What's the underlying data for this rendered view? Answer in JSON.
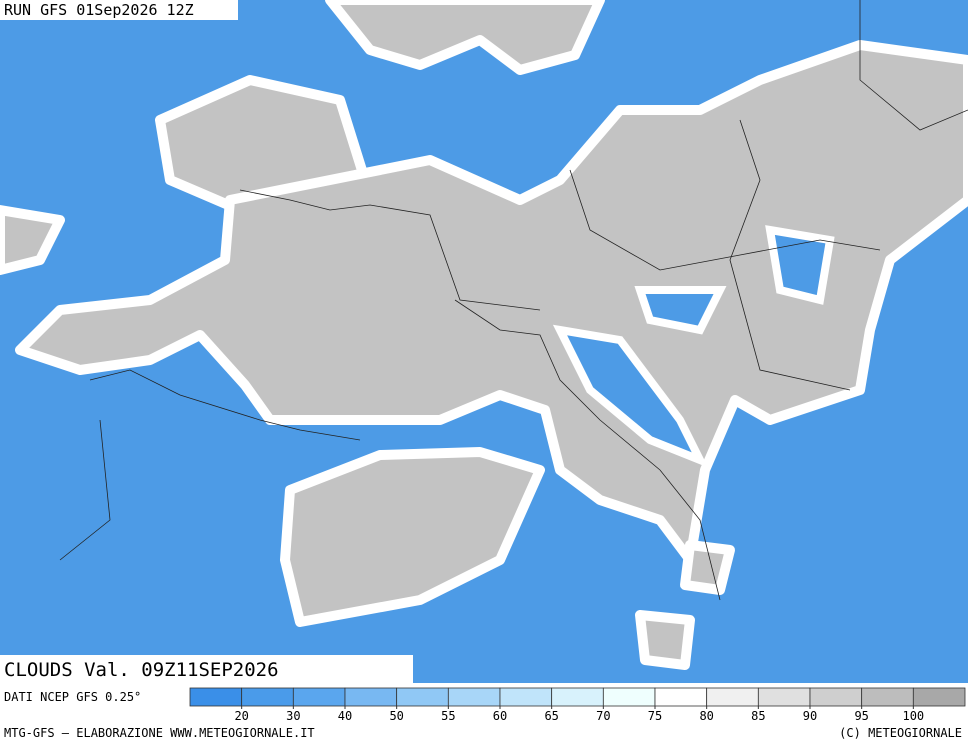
{
  "header": {
    "run": "RUN GFS 01Sep2026 12Z",
    "field": "CLOUDS Val. 09Z11SEP2026"
  },
  "legend": {
    "source": "DATI NCEP GFS 0.25°",
    "colors": [
      "#3a8fe8",
      "#4a9bea",
      "#5aa6ee",
      "#78b8f2",
      "#90c8f5",
      "#a8d6f8",
      "#c0e4fa",
      "#d8f2fc",
      "#effffe",
      "#ffffff",
      "#f0f0f0",
      "#e0e0e0",
      "#cfcfcf",
      "#bdbdbd",
      "#a8a8a8"
    ],
    "ticks": [
      20,
      30,
      40,
      50,
      55,
      60,
      65,
      70,
      75,
      80,
      85,
      90,
      95,
      100
    ]
  },
  "footer": {
    "credit": "MTG-GFS — ELABORAZIONE WWW.METEOGIORNALE.IT",
    "copyright": "(C) METEOGIORNALE"
  }
}
